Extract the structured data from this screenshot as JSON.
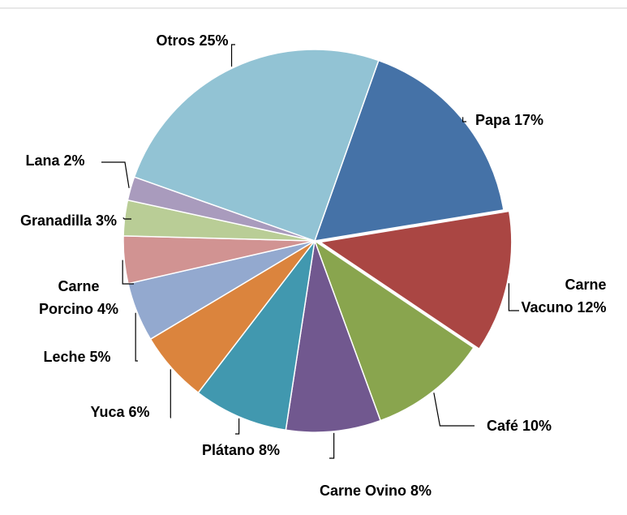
{
  "chart_data": {
    "type": "pie",
    "categories": [
      "Papa",
      "Carne Vacuno",
      "Café",
      "Carne Ovino",
      "Plátano",
      "Yuca",
      "Leche",
      "Carne Porcino",
      "Granadilla",
      "Lana",
      "Otros"
    ],
    "values": [
      17,
      12,
      10,
      8,
      8,
      6,
      5,
      4,
      3,
      2,
      25
    ],
    "value_labels": [
      "17%",
      "12%",
      "10%",
      "8%",
      "8%",
      "6%",
      "5%",
      "4%",
      "3%",
      "2%",
      "25%"
    ],
    "colors": [
      "#4572a7",
      "#aa4643",
      "#89a54e",
      "#71588f",
      "#4198af",
      "#db843d",
      "#93a9cf",
      "#d19392",
      "#b9cd96",
      "#a99bbd",
      "#92c3d4"
    ]
  }
}
